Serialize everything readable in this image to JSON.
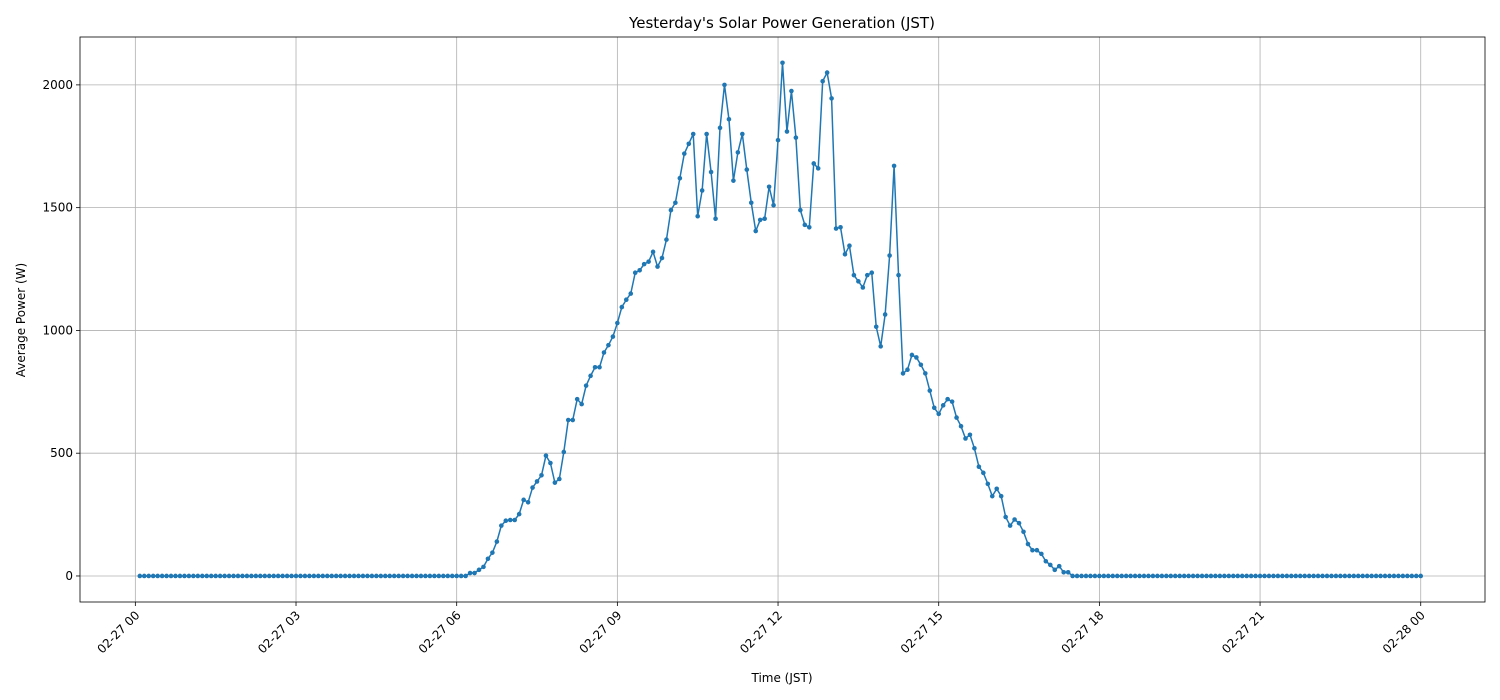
{
  "chart_data": {
    "type": "line",
    "title": "Yesterday's Solar Power Generation (JST)",
    "x_label": "Time (JST)",
    "y_label": "Average Power (W)",
    "xlim": [
      -62,
      1512
    ],
    "ylim": [
      -106,
      2195
    ],
    "grid": true,
    "marker": true,
    "xticks": [
      {
        "value": 0,
        "label": "02-27 00"
      },
      {
        "value": 180,
        "label": "02-27 03"
      },
      {
        "value": 360,
        "label": "02-27 06"
      },
      {
        "value": 540,
        "label": "02-27 09"
      },
      {
        "value": 720,
        "label": "02-27 12"
      },
      {
        "value": 900,
        "label": "02-27 15"
      },
      {
        "value": 1080,
        "label": "02-27 18"
      },
      {
        "value": 1260,
        "label": "02-27 21"
      },
      {
        "value": 1440,
        "label": "02-28 00"
      }
    ],
    "yticks": [
      0,
      500,
      1000,
      1500,
      2000
    ],
    "x": [
      5,
      10,
      15,
      20,
      25,
      30,
      35,
      40,
      45,
      50,
      55,
      60,
      65,
      70,
      75,
      80,
      85,
      90,
      95,
      100,
      105,
      110,
      115,
      120,
      125,
      130,
      135,
      140,
      145,
      150,
      155,
      160,
      165,
      170,
      175,
      180,
      185,
      190,
      195,
      200,
      205,
      210,
      215,
      220,
      225,
      230,
      235,
      240,
      245,
      250,
      255,
      260,
      265,
      270,
      275,
      280,
      285,
      290,
      295,
      300,
      305,
      310,
      315,
      320,
      325,
      330,
      335,
      340,
      345,
      350,
      355,
      360,
      365,
      370,
      375,
      380,
      385,
      390,
      395,
      400,
      405,
      410,
      415,
      420,
      425,
      430,
      435,
      440,
      445,
      450,
      455,
      460,
      465,
      470,
      475,
      480,
      485,
      490,
      495,
      500,
      505,
      510,
      515,
      520,
      525,
      530,
      535,
      540,
      545,
      550,
      555,
      560,
      565,
      570,
      575,
      580,
      585,
      590,
      595,
      600,
      605,
      610,
      615,
      620,
      625,
      630,
      635,
      640,
      645,
      650,
      655,
      660,
      665,
      670,
      675,
      680,
      685,
      690,
      695,
      700,
      705,
      710,
      715,
      720,
      725,
      730,
      735,
      740,
      745,
      750,
      755,
      760,
      765,
      770,
      775,
      780,
      785,
      790,
      795,
      800,
      805,
      810,
      815,
      820,
      825,
      830,
      835,
      840,
      845,
      850,
      855,
      860,
      865,
      870,
      875,
      880,
      885,
      890,
      895,
      900,
      905,
      910,
      915,
      920,
      925,
      930,
      935,
      940,
      945,
      950,
      955,
      960,
      965,
      970,
      975,
      980,
      985,
      990,
      995,
      1000,
      1005,
      1010,
      1015,
      1020,
      1025,
      1030,
      1035,
      1040,
      1045,
      1050,
      1055,
      1060,
      1065,
      1070,
      1075,
      1080,
      1085,
      1090,
      1095,
      1100,
      1105,
      1110,
      1115,
      1120,
      1125,
      1130,
      1135,
      1140,
      1145,
      1150,
      1155,
      1160,
      1165,
      1170,
      1175,
      1180,
      1185,
      1190,
      1195,
      1200,
      1205,
      1210,
      1215,
      1220,
      1225,
      1230,
      1235,
      1240,
      1245,
      1250,
      1255,
      1260,
      1265,
      1270,
      1275,
      1280,
      1285,
      1290,
      1295,
      1300,
      1305,
      1310,
      1315,
      1320,
      1325,
      1330,
      1335,
      1340,
      1345,
      1350,
      1355,
      1360,
      1365,
      1370,
      1375,
      1380,
      1385,
      1390,
      1395,
      1400,
      1405,
      1410,
      1415,
      1420,
      1425,
      1430,
      1435,
      1440
    ],
    "series": [
      {
        "color": "#1f77b4",
        "values": [
          0,
          0,
          0,
          0,
          0,
          0,
          0,
          0,
          0,
          0,
          0,
          0,
          0,
          0,
          0,
          0,
          0,
          0,
          0,
          0,
          0,
          0,
          0,
          0,
          0,
          0,
          0,
          0,
          0,
          0,
          0,
          0,
          0,
          0,
          0,
          0,
          0,
          0,
          0,
          0,
          0,
          0,
          0,
          0,
          0,
          0,
          0,
          0,
          0,
          0,
          0,
          0,
          0,
          0,
          0,
          0,
          0,
          0,
          0,
          0,
          0,
          0,
          0,
          0,
          0,
          0,
          0,
          0,
          0,
          0,
          0,
          0,
          0,
          0,
          12,
          12,
          25,
          37,
          70,
          95,
          140,
          205,
          225,
          228,
          228,
          252,
          310,
          300,
          360,
          385,
          410,
          490,
          460,
          380,
          395,
          505,
          635,
          635,
          720,
          700,
          775,
          815,
          850,
          850,
          910,
          940,
          975,
          1030,
          1095,
          1125,
          1150,
          1235,
          1245,
          1270,
          1280,
          1320,
          1260,
          1295,
          1370,
          1490,
          1520,
          1620,
          1720,
          1760,
          1800,
          1465,
          1570,
          1800,
          1645,
          1455,
          1825,
          2000,
          1860,
          1610,
          1725,
          1800,
          1655,
          1520,
          1405,
          1450,
          1455,
          1585,
          1510,
          1775,
          2090,
          1810,
          1975,
          1785,
          1490,
          1430,
          1420,
          1680,
          1660,
          2015,
          2050,
          1945,
          1415,
          1420,
          1310,
          1345,
          1225,
          1200,
          1175,
          1225,
          1235,
          1015,
          935,
          1065,
          1305,
          1670,
          1225,
          825,
          840,
          900,
          890,
          860,
          825,
          755,
          685,
          660,
          695,
          720,
          710,
          645,
          610,
          560,
          575,
          520,
          445,
          420,
          375,
          325,
          355,
          325,
          240,
          205,
          230,
          215,
          180,
          130,
          105,
          105,
          90,
          60,
          45,
          25,
          40,
          15,
          15,
          0,
          0,
          0,
          0,
          0,
          0,
          0,
          0,
          0,
          0,
          0,
          0,
          0,
          0,
          0,
          0,
          0,
          0,
          0,
          0,
          0,
          0,
          0,
          0,
          0,
          0,
          0,
          0,
          0,
          0,
          0,
          0,
          0,
          0,
          0,
          0,
          0,
          0,
          0,
          0,
          0,
          0,
          0,
          0,
          0,
          0,
          0,
          0,
          0,
          0,
          0,
          0,
          0,
          0,
          0,
          0,
          0,
          0,
          0,
          0,
          0,
          0,
          0,
          0,
          0,
          0,
          0,
          0,
          0,
          0,
          0,
          0,
          0,
          0,
          0,
          0,
          0,
          0,
          0
        ]
      }
    ]
  }
}
